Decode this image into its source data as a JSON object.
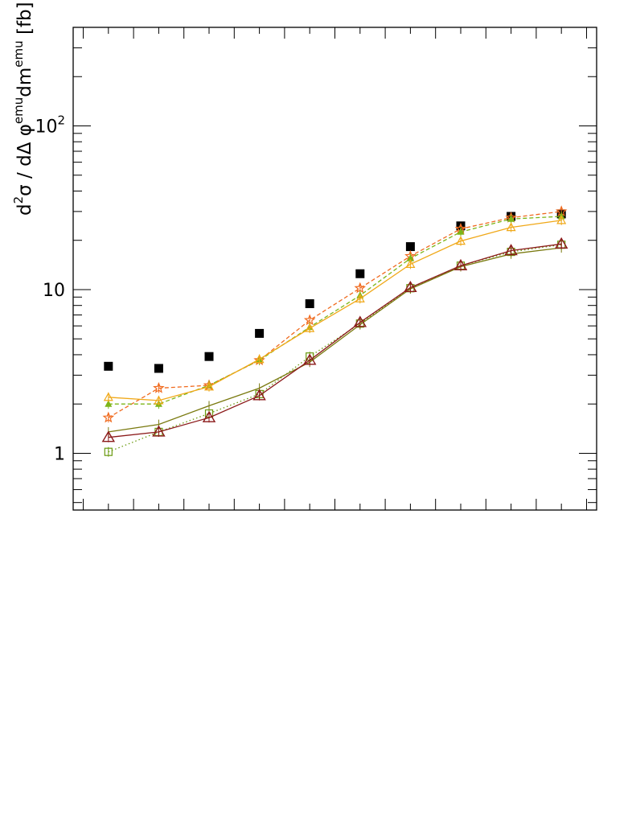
{
  "chart_data": {
    "type": "scatter",
    "ylabel": {
      "base": "d",
      "sup1": "2",
      "mid1": "σ / dΔ φ",
      "sup2": "emu",
      "mid2": "dm",
      "sup3": "emu",
      "tail": " [fb]"
    },
    "yscale": "log",
    "ylim": [
      0.45,
      400
    ],
    "xlim": [
      0,
      10.4
    ],
    "y_tick_labels": [
      {
        "value": 1,
        "text": "1"
      },
      {
        "value": 10,
        "text": "10"
      },
      {
        "value": 100,
        "base": "10",
        "sup": "2"
      }
    ],
    "x_tick_labels": [],
    "grid": false,
    "legend": "none",
    "series": [
      {
        "marker": "filled-square",
        "line": "none",
        "color": "#000000",
        "x": [
          0.5,
          1.5,
          2.5,
          3.5,
          4.5,
          5.5,
          6.5,
          7.5,
          8.5,
          9.5
        ],
        "y": [
          3.4,
          3.3,
          3.9,
          5.4,
          8.2,
          12.5,
          18.3,
          24.5,
          28.0,
          29.0
        ]
      },
      {
        "marker": "open-star",
        "line": "dashed",
        "color": "#f06a1e",
        "x": [
          0.5,
          1.5,
          2.5,
          3.5,
          4.5,
          5.5,
          6.5,
          7.5,
          8.5,
          9.5
        ],
        "y": [
          1.65,
          2.5,
          2.6,
          3.7,
          6.5,
          10.2,
          16.0,
          23.5,
          27.5,
          30.0
        ]
      },
      {
        "marker": "filled-triangle",
        "line": "dashed",
        "color": "#7cb518",
        "x": [
          0.5,
          1.5,
          2.5,
          3.5,
          4.5,
          5.5,
          6.5,
          7.5,
          8.5,
          9.5
        ],
        "y": [
          2.0,
          2.0,
          2.6,
          3.7,
          5.9,
          9.2,
          15.5,
          22.5,
          27.0,
          28.0
        ]
      },
      {
        "marker": "open-triangle",
        "line": "solid",
        "color": "#f0a818",
        "x": [
          0.5,
          1.5,
          2.5,
          3.5,
          4.5,
          5.5,
          6.5,
          7.5,
          8.5,
          9.5
        ],
        "y": [
          2.2,
          2.1,
          2.55,
          3.75,
          5.8,
          8.8,
          14.3,
          19.8,
          24.0,
          26.5
        ]
      },
      {
        "marker": "open-square",
        "line": "dotted",
        "color": "#6a9a10",
        "x": [
          0.5,
          1.5,
          2.5,
          3.5,
          4.5,
          5.5,
          6.5,
          7.5,
          8.5,
          9.5
        ],
        "y": [
          1.02,
          1.35,
          1.75,
          2.3,
          3.9,
          6.2,
          10.2,
          14.0,
          17.0,
          18.8
        ]
      },
      {
        "marker": "none",
        "line": "solid",
        "color": "#7a7a10",
        "x": [
          0.5,
          1.5,
          2.5,
          3.5,
          4.5,
          5.5,
          6.5,
          7.5,
          8.5,
          9.5
        ],
        "y": [
          1.35,
          1.5,
          1.95,
          2.5,
          3.6,
          6.1,
          10.1,
          13.8,
          16.5,
          18.0
        ]
      },
      {
        "marker": "open-triangle-large",
        "line": "solid",
        "color": "#8b1a1a",
        "x": [
          0.5,
          1.5,
          2.5,
          3.5,
          4.5,
          5.5,
          6.5,
          7.5,
          8.5,
          9.5
        ],
        "y": [
          1.25,
          1.35,
          1.65,
          2.25,
          3.7,
          6.3,
          10.3,
          14.0,
          17.3,
          19.0
        ]
      }
    ]
  }
}
